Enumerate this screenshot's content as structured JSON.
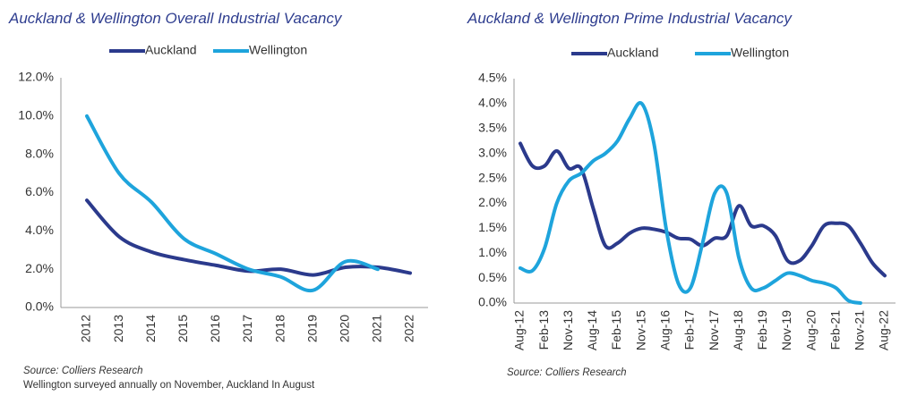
{
  "chart_data": [
    {
      "type": "line",
      "title": "Auckland & Wellington Overall Industrial Vacancy",
      "categories": [
        "2012",
        "2013",
        "2014",
        "2015",
        "2016",
        "2017",
        "2018",
        "2019",
        "2020",
        "2021",
        "2022"
      ],
      "series": [
        {
          "name": "Auckland",
          "color": "#2b3a8c",
          "values": [
            5.6,
            3.7,
            2.9,
            2.5,
            2.2,
            1.9,
            2.0,
            1.7,
            2.1,
            2.1,
            1.8
          ]
        },
        {
          "name": "Wellington",
          "color": "#1ea4dc",
          "values": [
            10.0,
            7.0,
            5.5,
            3.6,
            2.8,
            2.0,
            1.6,
            0.9,
            2.4,
            2.0,
            null
          ]
        }
      ],
      "ylim": [
        0,
        12
      ],
      "yticks": [
        {
          "value": 0,
          "label": "0.0%"
        },
        {
          "value": 2,
          "label": "2.0%"
        },
        {
          "value": 4,
          "label": "4.0%"
        },
        {
          "value": 6,
          "label": "6.0%"
        },
        {
          "value": 8,
          "label": "8.0%"
        },
        {
          "value": 10,
          "label": "10.0%"
        },
        {
          "value": 12,
          "label": "12.0%"
        }
      ],
      "source": "Source: Colliers Research",
      "note": "Wellington surveyed annually on November, Auckland In August"
    },
    {
      "type": "line",
      "title": "Auckland & Wellington Prime Industrial Vacancy",
      "categories": [
        "Aug-12",
        null,
        "Feb-13",
        null,
        "Nov-13",
        null,
        "Aug-14",
        null,
        "Feb-15",
        null,
        "Nov-15",
        null,
        "Aug-16",
        null,
        "Feb-17",
        null,
        "Nov-17",
        null,
        "Aug-18",
        null,
        "Feb-19",
        null,
        "Nov-19",
        null,
        "Aug-20",
        null,
        "Feb-21",
        null,
        "Nov-21",
        null,
        "Aug-22"
      ],
      "series": [
        {
          "name": "Auckland",
          "color": "#2b3a8c",
          "values": [
            3.2,
            2.75,
            2.75,
            3.05,
            2.7,
            2.7,
            1.9,
            1.15,
            1.2,
            1.4,
            1.5,
            1.48,
            1.42,
            1.3,
            1.28,
            1.15,
            1.3,
            1.35,
            1.95,
            1.55,
            1.55,
            1.35,
            0.85,
            0.85,
            1.15,
            1.55,
            1.6,
            1.55,
            1.2,
            0.8,
            0.55
          ]
        },
        {
          "name": "Wellington",
          "color": "#1ea4dc",
          "values": [
            0.7,
            0.65,
            1.1,
            2.0,
            2.45,
            2.6,
            2.85,
            3.0,
            3.25,
            3.7,
            4.0,
            3.2,
            1.5,
            0.4,
            0.3,
            1.2,
            2.2,
            2.2,
            0.9,
            0.3,
            0.3,
            0.45,
            0.6,
            0.55,
            0.45,
            0.4,
            0.3,
            0.05,
            0.0,
            null,
            null
          ]
        }
      ],
      "ylim": [
        0,
        4.5
      ],
      "yticks": [
        {
          "value": 0,
          "label": "0.0%"
        },
        {
          "value": 0.5,
          "label": "0.5%"
        },
        {
          "value": 1,
          "label": "1.0%"
        },
        {
          "value": 1.5,
          "label": "1.5%"
        },
        {
          "value": 2,
          "label": "2.0%"
        },
        {
          "value": 2.5,
          "label": "2.5%"
        },
        {
          "value": 3,
          "label": "3.0%"
        },
        {
          "value": 3.5,
          "label": "3.5%"
        },
        {
          "value": 4,
          "label": "4.0%"
        },
        {
          "value": 4.5,
          "label": "4.5%"
        }
      ],
      "source": "Source: Colliers Research"
    }
  ]
}
